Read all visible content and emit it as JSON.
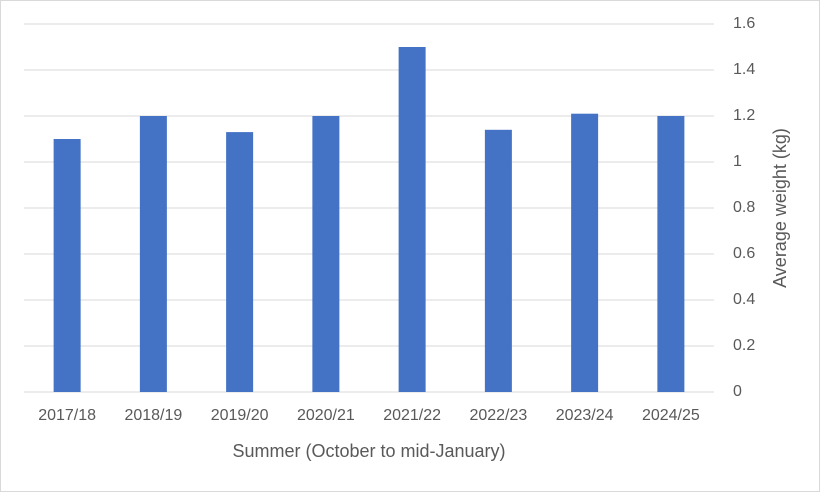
{
  "chart_data": {
    "type": "bar",
    "categories": [
      "2017/18",
      "2018/19",
      "2019/20",
      "2020/21",
      "2021/22",
      "2022/23",
      "2023/24",
      "2024/25"
    ],
    "values": [
      1.1,
      1.2,
      1.13,
      1.2,
      1.5,
      1.14,
      1.21,
      1.2
    ],
    "color": "#4472c4",
    "x_label": "Summer (October to mid-January)",
    "y_label": "Average weight (kg)",
    "y_axis_side": "right",
    "ylim": [
      0,
      1.6
    ],
    "yticks": [
      0,
      0.2,
      0.4,
      0.6,
      0.8,
      1,
      1.2,
      1.4,
      1.6
    ],
    "grid": true
  }
}
